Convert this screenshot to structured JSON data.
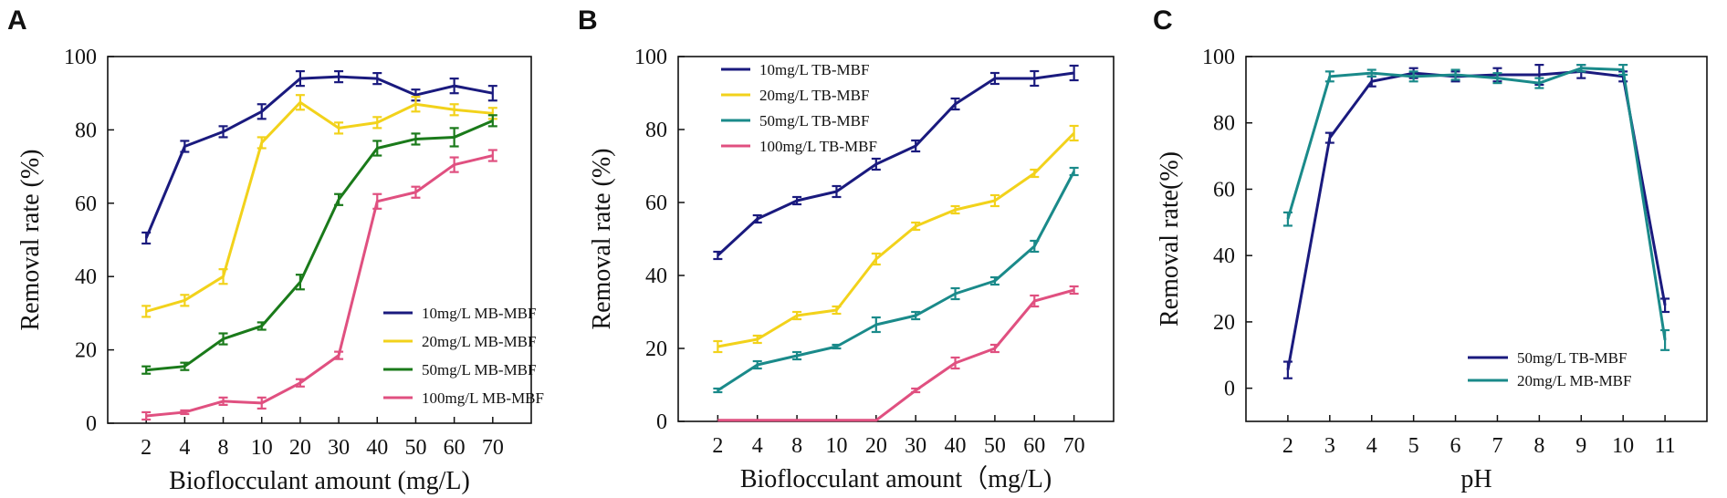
{
  "chart_data": [
    {
      "panel": "A",
      "type": "line",
      "title": "",
      "xlabel": "Bioflocculant amount (mg/L)",
      "ylabel": "Removal rate (%)",
      "categories": [
        "2",
        "4",
        "8",
        "10",
        "20",
        "30",
        "40",
        "50",
        "60",
        "70"
      ],
      "ylim": [
        0,
        100
      ],
      "yticks": [
        "0",
        "20",
        "40",
        "60",
        "80",
        "100"
      ],
      "grid": false,
      "legend_position": "bottom-right",
      "series": [
        {
          "name": "10mg/L MB-MBF",
          "color": "#1a1a7e",
          "values": [
            50.5,
            75.5,
            79.5,
            85,
            94,
            94.5,
            94,
            89.5,
            92,
            90
          ],
          "errors": [
            1.5,
            1.5,
            1.5,
            2,
            2,
            1.5,
            1.5,
            1.5,
            2,
            2
          ]
        },
        {
          "name": "20mg/L MB-MBF",
          "color": "#f2d21b",
          "values": [
            30.5,
            33.5,
            40,
            76.5,
            87.5,
            80.5,
            82,
            87,
            85.5,
            84.5
          ],
          "errors": [
            1.5,
            1.5,
            2,
            1.5,
            2,
            1.5,
            1.5,
            2,
            1.5,
            1.5
          ]
        },
        {
          "name": "50mg/L MB-MBF",
          "color": "#1a7a1a",
          "values": [
            14.5,
            15.5,
            23,
            26.5,
            38.5,
            61,
            75,
            77.5,
            78,
            82.5
          ],
          "errors": [
            1,
            1,
            1.5,
            1,
            2,
            1.5,
            2,
            1.5,
            2.5,
            1.5
          ]
        },
        {
          "name": "100mg/L MB-MBF",
          "color": "#e05080",
          "values": [
            2,
            3,
            6,
            5.5,
            11,
            18.5,
            60.5,
            63,
            70.5,
            73
          ],
          "errors": [
            1,
            0.5,
            1,
            1.5,
            1,
            1,
            2,
            1.5,
            2,
            1.5
          ]
        }
      ]
    },
    {
      "panel": "B",
      "type": "line",
      "title": "",
      "xlabel": "Bioflocculant amount（mg/L)",
      "ylabel": "Removal rate  (%)",
      "categories": [
        "2",
        "4",
        "8",
        "10",
        "20",
        "30",
        "40",
        "50",
        "60",
        "70"
      ],
      "ylim": [
        0,
        100
      ],
      "yticks": [
        "0",
        "20",
        "40",
        "60",
        "80",
        "100"
      ],
      "grid": false,
      "legend_position": "top-left",
      "series": [
        {
          "name": "10mg/L TB-MBF",
          "color": "#1a1a7e",
          "values": [
            45.5,
            55.5,
            60.5,
            63,
            70.5,
            75.5,
            87,
            94,
            94,
            95.5
          ],
          "errors": [
            1,
            1,
            1,
            1.5,
            1.5,
            1.5,
            1.5,
            1.5,
            2,
            2
          ]
        },
        {
          "name": "20mg/L TB-MBF",
          "color": "#f2d21b",
          "values": [
            20.5,
            22.5,
            29,
            30.5,
            44.5,
            53.5,
            58,
            60.5,
            68,
            79
          ],
          "errors": [
            1.5,
            1,
            1,
            1,
            1.5,
            1,
            1,
            1.5,
            1,
            2
          ]
        },
        {
          "name": "50mg/L TB-MBF",
          "color": "#1a8a8a",
          "values": [
            8.5,
            15.5,
            18,
            20.5,
            26.5,
            29,
            35,
            38.5,
            48,
            68.5
          ],
          "errors": [
            0.5,
            1,
            1,
            0.5,
            2,
            1,
            1.5,
            1,
            1.5,
            1
          ]
        },
        {
          "name": "100mg/L TB-MBF",
          "color": "#e05080",
          "values": [
            0.3,
            0.3,
            0.3,
            0.3,
            0.3,
            8.5,
            16,
            20,
            33,
            36
          ],
          "errors": [
            0,
            0,
            0,
            0,
            0,
            0.5,
            1.5,
            1,
            1.5,
            1
          ]
        }
      ]
    },
    {
      "panel": "C",
      "type": "line",
      "title": "",
      "xlabel": "pH",
      "ylabel": "Removal rate(%)",
      "categories": [
        "2",
        "3",
        "4",
        "5",
        "6",
        "7",
        "8",
        "9",
        "10",
        "11"
      ],
      "ylim": [
        -10,
        100
      ],
      "yticks": [
        "0",
        "20",
        "40",
        "60",
        "80",
        "100"
      ],
      "grid": false,
      "legend_position": "bottom-right",
      "series": [
        {
          "name": "50mg/L TB-MBF",
          "color": "#1a1a7e",
          "values": [
            5.5,
            75.5,
            92.5,
            95,
            94,
            94.5,
            94.5,
            95.5,
            94,
            25
          ],
          "errors": [
            2.5,
            1.5,
            1.5,
            1.5,
            1.5,
            2,
            3,
            2,
            1.5,
            2
          ]
        },
        {
          "name": "20mg/L MB-MBF",
          "color": "#1a8a8a",
          "values": [
            51,
            94,
            95,
            94,
            94.5,
            93.5,
            92,
            96.5,
            96,
            14.5
          ],
          "errors": [
            2,
            1.5,
            1,
            1.5,
            1.5,
            1.5,
            1.5,
            1,
            1.5,
            3
          ]
        }
      ]
    }
  ]
}
